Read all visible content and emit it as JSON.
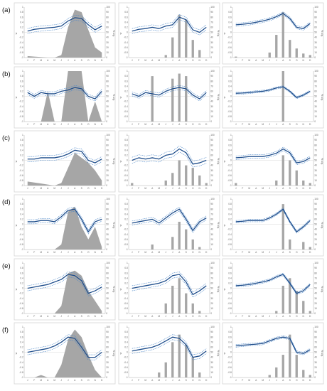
{
  "figure": {
    "row_labels": [
      "(a)",
      "(b)",
      "(c)",
      "(d)",
      "(e)",
      "(f)"
    ],
    "months": [
      "J",
      "F",
      "M",
      "A",
      "M",
      "J",
      "J",
      "A",
      "S",
      "O",
      "N",
      "D"
    ],
    "left_axis_label": "w",
    "right_axis_label": "% sig.",
    "left_ticks": [
      "1",
      "0.8",
      "0.6",
      "0.4",
      "0.2",
      "0",
      "-0.2",
      "-0.4",
      "-0.6",
      "-0.8",
      "-1"
    ],
    "right_ticks": [
      "100",
      "90",
      "80",
      "70",
      "60",
      "50",
      "40",
      "30",
      "20",
      "10",
      "0"
    ],
    "colors": {
      "line": "#1f4e8c",
      "band": "#4a86c8",
      "fill": "#a6a6a6"
    }
  },
  "chart_data": [
    {
      "row": "(a)",
      "type": "area",
      "column": 1,
      "line": [
        0.05,
        0.12,
        0.15,
        0.18,
        0.2,
        0.25,
        0.45,
        0.58,
        0.55,
        0.3,
        0.1,
        0.25
      ],
      "band": 0.1,
      "pct_sig": [
        3,
        2,
        1,
        0,
        0,
        5,
        60,
        95,
        90,
        55,
        20,
        10
      ]
    },
    {
      "row": "(a)",
      "type": "bar",
      "column": 2,
      "line": [
        0.05,
        0.12,
        0.15,
        0.2,
        0.15,
        0.25,
        0.3,
        0.6,
        0.5,
        0.1,
        0.0,
        0.2
      ],
      "band": 0.1,
      "pct_sig": [
        0,
        0,
        0,
        0,
        0,
        5,
        40,
        85,
        75,
        35,
        15,
        0
      ]
    },
    {
      "row": "(a)",
      "type": "bar",
      "column": 3,
      "line": [
        0.3,
        0.32,
        0.35,
        0.4,
        0.45,
        0.52,
        0.62,
        0.75,
        0.55,
        0.2,
        0.15,
        0.35
      ],
      "band": 0.06,
      "pct_sig": [
        2,
        0,
        0,
        0,
        0,
        10,
        45,
        90,
        35,
        18,
        8,
        5
      ]
    },
    {
      "row": "(b)",
      "type": "area",
      "column": 1,
      "line": [
        0.15,
        0.0,
        0.15,
        0.1,
        0.1,
        0.2,
        0.25,
        0.35,
        0.3,
        0.0,
        -0.1,
        0.2
      ],
      "band": 0.08,
      "pct_sig": [
        0,
        0,
        0,
        60,
        0,
        0,
        100,
        100,
        100,
        0,
        40,
        0
      ]
    },
    {
      "row": "(b)",
      "type": "bar",
      "column": 2,
      "line": [
        0.1,
        0.0,
        0.15,
        0.1,
        0.05,
        0.2,
        0.3,
        0.35,
        0.3,
        0.05,
        -0.1,
        0.15
      ],
      "band": 0.08,
      "pct_sig": [
        0,
        0,
        0,
        90,
        0,
        0,
        85,
        95,
        90,
        0,
        0,
        0
      ]
    },
    {
      "row": "(b)",
      "type": "bar",
      "column": 3,
      "line": [
        0.12,
        0.13,
        0.15,
        0.18,
        0.2,
        0.25,
        0.33,
        0.38,
        0.2,
        -0.05,
        0.05,
        0.2
      ],
      "band": 0.04,
      "pct_sig": [
        0,
        0,
        0,
        0,
        0,
        0,
        0,
        100,
        0,
        0,
        0,
        0
      ]
    },
    {
      "row": "(c)",
      "type": "area",
      "column": 1,
      "line": [
        0.05,
        0.05,
        0.1,
        0.1,
        0.1,
        0.15,
        0.25,
        0.4,
        0.35,
        0.0,
        -0.1,
        0.05
      ],
      "band": 0.1,
      "pct_sig": [
        8,
        6,
        4,
        2,
        0,
        5,
        35,
        65,
        55,
        45,
        30,
        10
      ]
    },
    {
      "row": "(c)",
      "type": "bar",
      "column": 2,
      "line": [
        0.0,
        0.1,
        0.05,
        0.1,
        0.05,
        0.2,
        0.25,
        0.45,
        0.3,
        -0.15,
        -0.1,
        0.0
      ],
      "band": 0.12,
      "pct_sig": [
        5,
        0,
        0,
        0,
        0,
        10,
        25,
        50,
        40,
        35,
        20,
        5
      ]
    },
    {
      "row": "(c)",
      "type": "bar",
      "column": 3,
      "line": [
        0.1,
        0.12,
        0.15,
        0.15,
        0.15,
        0.2,
        0.28,
        0.45,
        0.3,
        -0.1,
        -0.05,
        0.1
      ],
      "band": 0.07,
      "pct_sig": [
        5,
        0,
        0,
        0,
        0,
        0,
        10,
        60,
        50,
        30,
        10,
        5
      ]
    },
    {
      "row": "(d)",
      "type": "area",
      "column": 1,
      "line": [
        0.1,
        0.1,
        0.15,
        0.15,
        0.1,
        0.3,
        0.55,
        0.6,
        0.2,
        -0.3,
        0.1,
        0.2
      ],
      "band": 0.08,
      "pct_sig": [
        0,
        0,
        0,
        0,
        0,
        10,
        75,
        85,
        45,
        20,
        45,
        5
      ]
    },
    {
      "row": "(d)",
      "type": "bar",
      "column": 2,
      "line": [
        0.05,
        0.1,
        0.15,
        0.2,
        0.05,
        0.25,
        0.45,
        0.6,
        0.2,
        -0.25,
        0.1,
        0.25
      ],
      "band": 0.08,
      "pct_sig": [
        0,
        0,
        0,
        10,
        0,
        0,
        25,
        55,
        40,
        20,
        5,
        0
      ]
    },
    {
      "row": "(d)",
      "type": "bar",
      "column": 3,
      "line": [
        0.1,
        0.12,
        0.15,
        0.15,
        0.15,
        0.25,
        0.4,
        0.6,
        0.1,
        -0.3,
        -0.1,
        0.15
      ],
      "band": 0.05,
      "pct_sig": [
        0,
        0,
        0,
        0,
        0,
        0,
        0,
        90,
        20,
        0,
        15,
        5
      ]
    },
    {
      "row": "(e)",
      "type": "area",
      "column": 1,
      "line": [
        0.0,
        0.05,
        0.1,
        0.15,
        0.25,
        0.35,
        0.55,
        0.5,
        0.3,
        -0.2,
        -0.1,
        0.05
      ],
      "band": 0.1,
      "pct_sig": [
        0,
        0,
        0,
        0,
        0,
        15,
        80,
        85,
        75,
        45,
        25,
        5
      ]
    },
    {
      "row": "(e)",
      "type": "bar",
      "column": 2,
      "line": [
        0.0,
        0.05,
        0.1,
        0.15,
        0.2,
        0.3,
        0.5,
        0.55,
        0.25,
        -0.25,
        -0.1,
        0.1
      ],
      "band": 0.1,
      "pct_sig": [
        0,
        0,
        0,
        0,
        0,
        20,
        55,
        70,
        40,
        20,
        5,
        0
      ]
    },
    {
      "row": "(e)",
      "type": "bar",
      "column": 3,
      "line": [
        0.1,
        0.12,
        0.15,
        0.2,
        0.25,
        0.32,
        0.45,
        0.55,
        0.2,
        -0.2,
        -0.1,
        0.15
      ],
      "band": 0.05,
      "pct_sig": [
        0,
        0,
        0,
        0,
        0,
        0,
        5,
        55,
        70,
        45,
        25,
        5
      ]
    },
    {
      "row": "(f)",
      "type": "area",
      "column": 1,
      "line": [
        0.0,
        0.05,
        0.1,
        0.15,
        0.25,
        0.4,
        0.6,
        0.55,
        0.2,
        -0.2,
        -0.2,
        0.0
      ],
      "band": 0.1,
      "pct_sig": [
        0,
        0,
        5,
        0,
        0,
        25,
        75,
        95,
        80,
        45,
        15,
        0
      ]
    },
    {
      "row": "(f)",
      "type": "bar",
      "column": 2,
      "line": [
        0.05,
        0.1,
        0.15,
        0.2,
        0.3,
        0.45,
        0.6,
        0.55,
        0.3,
        -0.2,
        -0.15,
        0.05
      ],
      "band": 0.1,
      "pct_sig": [
        0,
        0,
        0,
        0,
        10,
        30,
        70,
        85,
        65,
        40,
        10,
        0
      ]
    },
    {
      "row": "(f)",
      "type": "bar",
      "column": 3,
      "line": [
        0.25,
        0.28,
        0.3,
        0.32,
        0.35,
        0.45,
        0.55,
        0.6,
        0.55,
        0.0,
        -0.05,
        0.1
      ],
      "band": 0.05,
      "pct_sig": [
        0,
        0,
        0,
        0,
        0,
        5,
        20,
        45,
        85,
        45,
        15,
        5
      ]
    }
  ]
}
